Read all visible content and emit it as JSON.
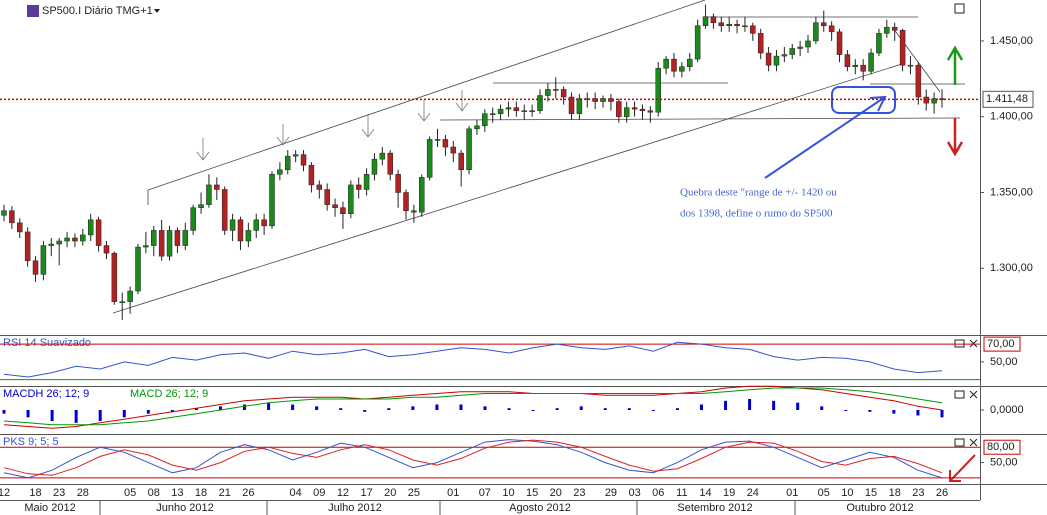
{
  "chart_data": [
    {
      "type": "candlestick",
      "title": "SP500.I Diário TMG+1",
      "categories": [
        "12",
        null,
        null,
        null,
        "18",
        null,
        null,
        "23",
        null,
        null,
        "28",
        null,
        null,
        null,
        null,
        null,
        "05",
        null,
        null,
        "08",
        null,
        null,
        "13",
        null,
        null,
        "18",
        null,
        null,
        "21",
        null,
        null,
        "26",
        null,
        null,
        null,
        null,
        null,
        "04",
        null,
        null,
        "09",
        null,
        null,
        "12",
        null,
        null,
        "17",
        null,
        null,
        "20",
        null,
        null,
        "25",
        null,
        null,
        null,
        null,
        "01",
        null,
        null,
        null,
        "07",
        null,
        null,
        "10",
        null,
        null,
        "15",
        null,
        null,
        "20",
        null,
        null,
        "23",
        null,
        null,
        null,
        "29",
        null,
        null,
        "03",
        null,
        null,
        "06",
        null,
        null,
        "11",
        null,
        null,
        "14",
        null,
        null,
        "19",
        null,
        null,
        "24",
        null,
        null,
        null,
        null,
        "01",
        null,
        null,
        null,
        "05",
        null,
        null,
        "10",
        null,
        null,
        "15",
        null,
        null,
        "18",
        null,
        null,
        "23",
        null,
        null,
        "26"
      ],
      "open": [
        1335,
        1338,
        1330,
        1324,
        1305,
        1296,
        1315,
        1316,
        1318,
        1320,
        1318,
        1322,
        1332,
        1315,
        1310,
        1278,
        1278,
        1285,
        1314,
        1315,
        1325,
        1308,
        1325,
        1315,
        1325,
        1340,
        1342,
        1355,
        1352,
        1325,
        1332,
        1318,
        1325,
        1332,
        1328,
        1362,
        1365,
        1374,
        1375,
        1368,
        1355,
        1352,
        1342,
        1340,
        1336,
        1355,
        1352,
        1362,
        1372,
        1376,
        1362,
        1350,
        1338,
        1337,
        1360,
        1385,
        1385,
        1380,
        1376,
        1365,
        1392,
        1394,
        1402,
        1402,
        1405,
        1406,
        1404,
        1404,
        1404,
        1414,
        1418,
        1418,
        1413,
        1402,
        1412,
        1412,
        1410,
        1412,
        1410,
        1400,
        1406,
        1405,
        1404,
        1403,
        1432,
        1438,
        1430,
        1433,
        1438,
        1460,
        1466,
        1462,
        1460,
        1461,
        1460,
        1460,
        1455,
        1442,
        1434,
        1440,
        1441,
        1445,
        1446,
        1450,
        1462,
        1460,
        1456,
        1441,
        1433,
        1434,
        1430,
        1442,
        1455,
        1459,
        1457,
        1434,
        1434,
        1413,
        1409,
        1412
      ],
      "high": [
        1342,
        1341,
        1333,
        1327,
        1308,
        1318,
        1320,
        1320,
        1324,
        1323,
        1326,
        1336,
        1334,
        1318,
        1311,
        1284,
        1288,
        1316,
        1324,
        1328,
        1332,
        1328,
        1327,
        1330,
        1342,
        1350,
        1362,
        1360,
        1354,
        1336,
        1334,
        1330,
        1336,
        1336,
        1364,
        1370,
        1378,
        1378,
        1378,
        1370,
        1358,
        1356,
        1346,
        1344,
        1358,
        1360,
        1366,
        1376,
        1380,
        1378,
        1365,
        1352,
        1342,
        1362,
        1387,
        1392,
        1388,
        1384,
        1378,
        1394,
        1398,
        1405,
        1406,
        1408,
        1410,
        1410,
        1408,
        1408,
        1418,
        1422,
        1426,
        1420,
        1416,
        1415,
        1416,
        1416,
        1414,
        1415,
        1412,
        1410,
        1410,
        1408,
        1407,
        1436,
        1440,
        1442,
        1436,
        1442,
        1464,
        1474,
        1468,
        1466,
        1466,
        1464,
        1466,
        1462,
        1458,
        1446,
        1444,
        1446,
        1448,
        1450,
        1454,
        1466,
        1470,
        1463,
        1458,
        1444,
        1438,
        1438,
        1445,
        1458,
        1464,
        1462,
        1458,
        1440,
        1436,
        1418,
        1416,
        1418
      ],
      "low": [
        1331,
        1326,
        1320,
        1301,
        1291,
        1292,
        1308,
        1302,
        1314,
        1314,
        1315,
        1318,
        1311,
        1306,
        1276,
        1266,
        1270,
        1283,
        1310,
        1308,
        1305,
        1305,
        1310,
        1312,
        1322,
        1336,
        1340,
        1345,
        1322,
        1318,
        1312,
        1314,
        1320,
        1322,
        1326,
        1358,
        1362,
        1370,
        1364,
        1350,
        1346,
        1338,
        1334,
        1326,
        1333,
        1346,
        1348,
        1358,
        1368,
        1358,
        1340,
        1332,
        1330,
        1334,
        1358,
        1380,
        1374,
        1370,
        1354,
        1362,
        1388,
        1390,
        1396,
        1398,
        1400,
        1400,
        1398,
        1400,
        1402,
        1410,
        1412,
        1408,
        1398,
        1398,
        1406,
        1405,
        1406,
        1404,
        1396,
        1396,
        1400,
        1398,
        1396,
        1400,
        1428,
        1426,
        1426,
        1430,
        1436,
        1458,
        1458,
        1456,
        1456,
        1455,
        1456,
        1450,
        1438,
        1430,
        1430,
        1436,
        1438,
        1440,
        1442,
        1448,
        1456,
        1450,
        1436,
        1430,
        1428,
        1424,
        1428,
        1440,
        1452,
        1450,
        1430,
        1428,
        1408,
        1404,
        1402,
        1406
      ],
      "close": [
        1338,
        1330,
        1324,
        1305,
        1296,
        1315,
        1316,
        1318,
        1320,
        1318,
        1322,
        1332,
        1315,
        1310,
        1278,
        1278,
        1285,
        1314,
        1315,
        1325,
        1308,
        1325,
        1315,
        1325,
        1340,
        1342,
        1355,
        1352,
        1325,
        1332,
        1318,
        1325,
        1332,
        1328,
        1362,
        1365,
        1374,
        1375,
        1368,
        1355,
        1352,
        1342,
        1340,
        1336,
        1355,
        1352,
        1362,
        1372,
        1376,
        1362,
        1350,
        1338,
        1337,
        1360,
        1385,
        1385,
        1380,
        1376,
        1365,
        1392,
        1394,
        1402,
        1402,
        1405,
        1406,
        1404,
        1404,
        1404,
        1414,
        1418,
        1418,
        1413,
        1402,
        1412,
        1412,
        1410,
        1412,
        1410,
        1400,
        1406,
        1405,
        1404,
        1403,
        1432,
        1438,
        1430,
        1433,
        1438,
        1460,
        1466,
        1462,
        1460,
        1461,
        1460,
        1460,
        1455,
        1442,
        1434,
        1440,
        1441,
        1445,
        1446,
        1450,
        1462,
        1460,
        1456,
        1441,
        1433,
        1434,
        1430,
        1442,
        1455,
        1459,
        1457,
        1434,
        1434,
        1413,
        1409,
        1412,
        1411.48
      ],
      "up_color": "#1a8a1a",
      "down_color": "#b22222",
      "ylim": [
        1256,
        1477
      ],
      "yticks": [
        {
          "value": 1450,
          "label": "1.450,00"
        },
        {
          "value": 1400,
          "label": "1.400,00"
        },
        {
          "value": 1350,
          "label": "1.350,00"
        },
        {
          "value": 1300,
          "label": "1.300,00"
        }
      ],
      "last_price": {
        "value": 1411.48,
        "label": "1.411,48"
      },
      "months": [
        "Maio 2012",
        "Junho 2012",
        "Julho 2012",
        "Agosto 2012",
        "Setembro 2012",
        "Outubro 2012"
      ],
      "annotation": [
        "Quebra deste \"range de +/- 1420 ou",
        "dos 1398, define o rumo do SP500"
      ]
    },
    {
      "type": "line",
      "title": "RSI 14 Suavizado",
      "series": [
        {
          "color": "#3355cc",
          "values": [
            36,
            33,
            38,
            45,
            42,
            50,
            46,
            55,
            52,
            58,
            60,
            54,
            62,
            58,
            60,
            64,
            56,
            58,
            62,
            66,
            64,
            60,
            66,
            70,
            66,
            64,
            68,
            62,
            72,
            70,
            66,
            64,
            56,
            52,
            55,
            54,
            50,
            42,
            38,
            40
          ]
        }
      ],
      "ylim": [
        24,
        78
      ],
      "yticks": [
        {
          "value": 50,
          "label": "50,00"
        }
      ],
      "levels": [
        {
          "value": 70,
          "label": "70,00",
          "color": "#cc0000"
        },
        {
          "value": 30,
          "color": "#009900"
        }
      ]
    },
    {
      "type": "combo",
      "title": "MACDH 26; 12; 9",
      "series": [
        {
          "color": "#0000cc",
          "style": "bar",
          "values": [
            -2,
            -4,
            -6,
            -7,
            -6,
            -4,
            -2,
            -1,
            1,
            2,
            3,
            4,
            3,
            2,
            1,
            -1,
            1,
            2,
            3,
            3,
            2,
            1,
            0,
            1,
            2,
            1,
            1,
            0,
            1,
            3,
            5,
            6,
            5,
            4,
            2,
            0,
            -1,
            -2,
            -3,
            -4
          ]
        },
        {
          "color": "#cc0000",
          "style": "line",
          "values": [
            -8,
            -9,
            -10,
            -9,
            -7,
            -5,
            -3,
            -1,
            1,
            3,
            5,
            6,
            7,
            7,
            7,
            6,
            7,
            8,
            9,
            10,
            10,
            10,
            9,
            9,
            9,
            8,
            8,
            8,
            9,
            10,
            12,
            13,
            13,
            12,
            11,
            9,
            7,
            5,
            2,
            0
          ]
        },
        {
          "name": "MACD 26; 12; 9",
          "color": "#009900",
          "style": "line",
          "values": [
            -6,
            -7,
            -8,
            -8,
            -8,
            -7,
            -6,
            -4,
            -2,
            0,
            2,
            4,
            5,
            6,
            6,
            6,
            6,
            7,
            7,
            8,
            9,
            9,
            9,
            9,
            9,
            9,
            9,
            9,
            9,
            9,
            10,
            11,
            12,
            12,
            12,
            11,
            10,
            8,
            6,
            4
          ]
        }
      ],
      "ylim": [
        -12,
        12
      ],
      "yticks": [
        {
          "value": 0,
          "label": "0,0000"
        }
      ]
    },
    {
      "type": "line",
      "title": "PKS 9; 5; 5",
      "series": [
        {
          "color": "#3355cc",
          "values": [
            30,
            20,
            35,
            60,
            80,
            70,
            50,
            30,
            40,
            70,
            85,
            75,
            55,
            70,
            88,
            80,
            60,
            40,
            50,
            70,
            90,
            95,
            92,
            85,
            70,
            50,
            35,
            30,
            50,
            75,
            90,
            92,
            80,
            60,
            40,
            55,
            70,
            60,
            35,
            20
          ]
        },
        {
          "color": "#dd2222",
          "values": [
            40,
            28,
            25,
            40,
            62,
            75,
            65,
            45,
            35,
            50,
            72,
            80,
            68,
            60,
            75,
            85,
            75,
            55,
            45,
            58,
            78,
            90,
            94,
            90,
            80,
            62,
            45,
            33,
            38,
            58,
            80,
            90,
            88,
            72,
            52,
            45,
            58,
            62,
            48,
            30
          ]
        }
      ],
      "ylim": [
        10,
        100
      ],
      "yticks": [
        {
          "value": 50,
          "label": "50,00"
        }
      ],
      "levels": [
        {
          "value": 80,
          "label": "80,00",
          "color": "#cc0000"
        },
        {
          "value": 20,
          "color": "#cc0000"
        }
      ]
    }
  ]
}
